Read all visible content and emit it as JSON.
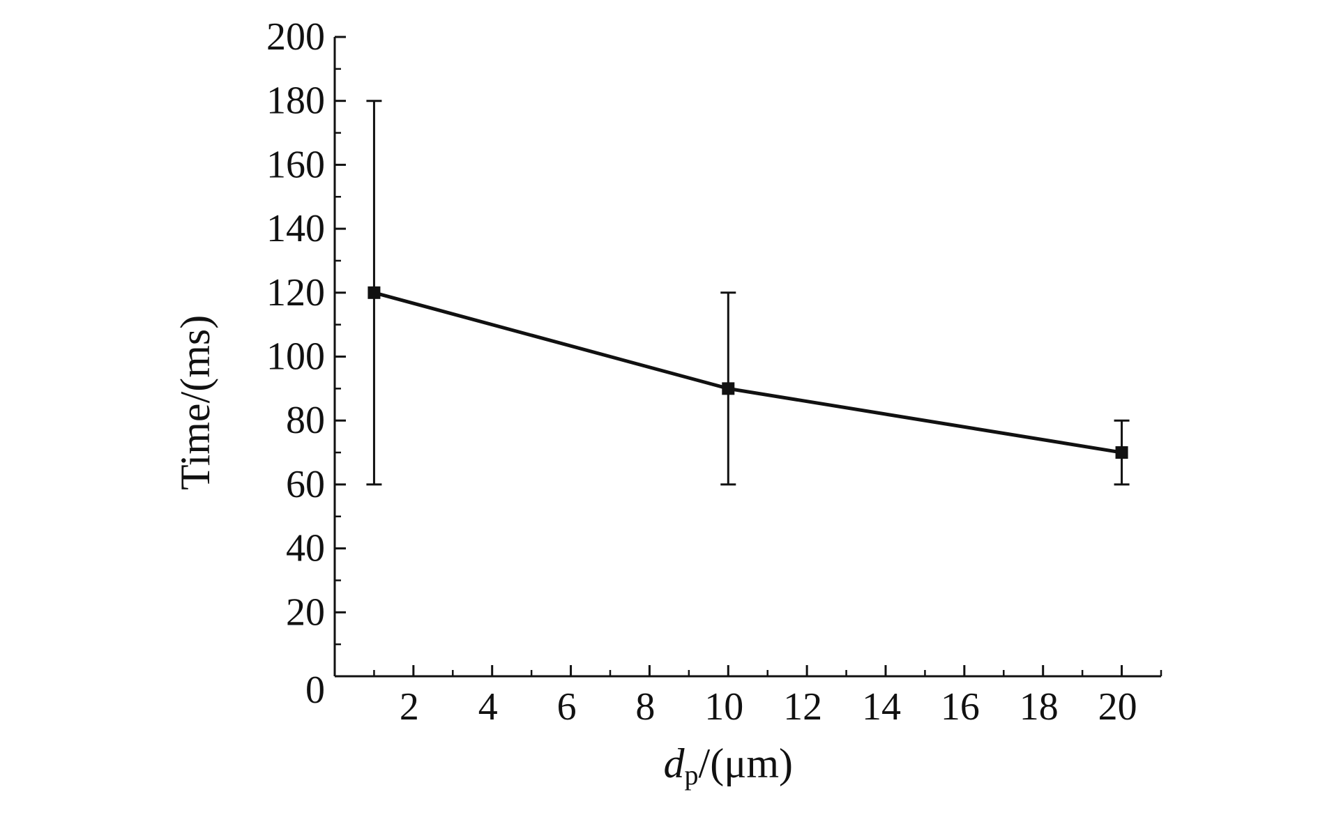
{
  "chart_data": {
    "type": "line",
    "title": "",
    "xlabel": {
      "italic": "d",
      "subscript": "p",
      "suffix": "/(μm)"
    },
    "ylabel": "Time/(ms)",
    "xlim": [
      0,
      21
    ],
    "ylim": [
      0,
      200
    ],
    "x_ticks": [
      2,
      4,
      6,
      8,
      10,
      12,
      14,
      16,
      18,
      20
    ],
    "y_ticks": [
      0,
      20,
      40,
      60,
      80,
      100,
      120,
      140,
      160,
      180,
      200
    ],
    "grid": false,
    "legend": "none",
    "colors": {
      "series": "#111111",
      "axis": "#111111"
    },
    "series": [
      {
        "marker": "square",
        "points": [
          {
            "x": 1,
            "y": 120,
            "err_low": 60,
            "err_high": 180
          },
          {
            "x": 10,
            "y": 90,
            "err_low": 60,
            "err_high": 120
          },
          {
            "x": 20,
            "y": 70,
            "err_low": 60,
            "err_high": 80
          }
        ]
      }
    ]
  }
}
